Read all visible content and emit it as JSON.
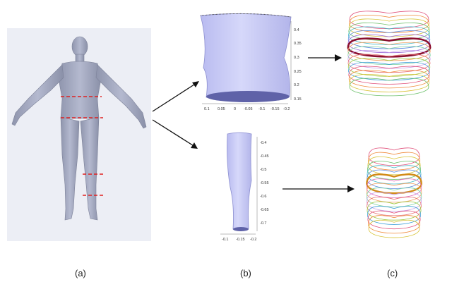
{
  "panels": {
    "a": {
      "label": "(a)"
    },
    "b": {
      "label": "(b)"
    },
    "c": {
      "label": "(c)"
    }
  },
  "torso_plot": {
    "y_ticks": [
      "0.4",
      "0.35",
      "0.3",
      "0.25",
      "0.2",
      "0.15"
    ],
    "x_ticks": [
      "0.1",
      "0.05",
      "0",
      "-0.05",
      "-0.1",
      "-0.15",
      "-0.2"
    ]
  },
  "leg_plot": {
    "y_ticks": [
      "-0.4",
      "-0.45",
      "-0.5",
      "-0.55",
      "-0.6",
      "-0.65",
      "-0.7"
    ],
    "x_ticks": [
      "-0.1",
      "-0.15",
      "-0.2"
    ]
  },
  "colors": {
    "mesh": "#a9aec4",
    "scan_surface": "#c9cbf4",
    "cut_line": "#e02020",
    "torso_highlight": "#8b1030",
    "leg_highlight": "#d28a18"
  }
}
